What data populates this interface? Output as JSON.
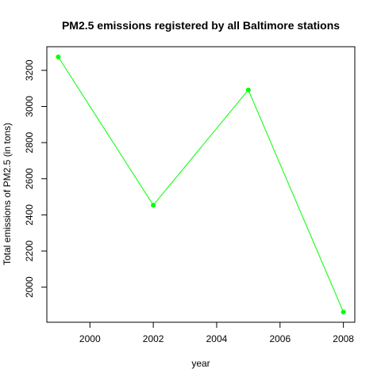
{
  "chart_data": {
    "type": "line",
    "title": "PM2.5 emissions registered by all Baltimore stations",
    "xlabel": "year",
    "ylabel": "Total emissions of PM2.5 (in tons)",
    "x": [
      1999,
      2002,
      2005,
      2008
    ],
    "series": [
      {
        "values": [
          3274.18,
          2453.92,
          3091.35,
          1862.28
        ],
        "color": "#00FF00"
      }
    ],
    "xticks": [
      2000,
      2002,
      2004,
      2006,
      2008
    ],
    "yticks": [
      2000,
      2200,
      2400,
      2600,
      2800,
      3000,
      3200
    ],
    "xlim": [
      1999,
      2008
    ],
    "ylim": [
      1862.28,
      3274.18
    ],
    "grid": false,
    "legend": "none"
  }
}
